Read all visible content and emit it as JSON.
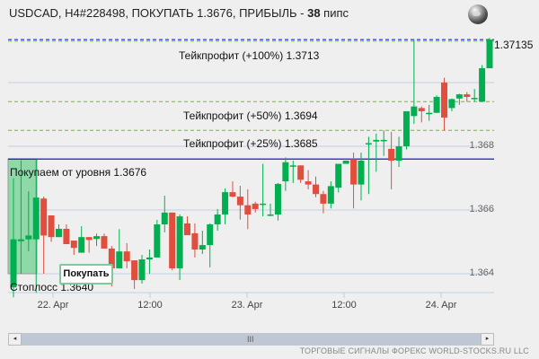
{
  "header": {
    "title_prefix": "USDCAD, H4#228498, ПОКУПАТЬ 1.3676, ПРИБЫЛЬ - ",
    "profit_pips": "38",
    "title_suffix": " пипс",
    "globe_icon": "globe-icon"
  },
  "labels": {
    "tp100": "Тейкпрофит (+100%) 1.3713",
    "tp50": "Тейкпрофит (+50%) 1.3694",
    "tp25": "Тейкпрофит (+25%) 1.3685",
    "entry": "Покупаем от уровня 1.3676",
    "stoploss": "Стоплосс 1.3640",
    "buy_button": "Покупать",
    "current_price": "1.37135"
  },
  "footer": {
    "credit": "ТОРГОВЫЕ СИГНАЛЫ ФОРЕКС WORLD-STOCKS.RU LLC",
    "scroll_left": "◂",
    "scroll_right": "▸",
    "scroll_grip": "III"
  },
  "colors": {
    "up": "#00b050",
    "down": "#e04e3e",
    "entry_line": "#0000c0",
    "tp_line": "#66cc00",
    "current_line": "#0000ff",
    "grid": "#c0cfe0",
    "zone": "#8fd8a8"
  },
  "chart_data": {
    "type": "candlestick",
    "title": "USDCAD, H4#228498, ПОКУПАТЬ 1.3676, ПРИБЫЛЬ - 38 пипс",
    "symbol": "USDCAD",
    "timeframe": "H4",
    "y_ticks": [
      1.364,
      1.366,
      1.368
    ],
    "x_ticks": [
      {
        "label": "22. Apr",
        "x": 59
      },
      {
        "label": "12:00",
        "x": 167
      },
      {
        "label": "23. Apr",
        "x": 275
      },
      {
        "label": "12:00",
        "x": 383
      },
      {
        "label": "24. Apr",
        "x": 491
      }
    ],
    "levels": {
      "take_profit_100": 1.3713,
      "take_profit_50": 1.3694,
      "take_profit_25": 1.3685,
      "entry": 1.3676,
      "stop_loss": 1.364,
      "current": 1.37135
    },
    "candles": [
      {
        "o": 1.36357,
        "h": 1.367,
        "l": 1.36326,
        "c": 1.36508
      },
      {
        "o": 1.36502,
        "h": 1.36756,
        "l": 1.364,
        "c": 1.36508
      },
      {
        "o": 1.36508,
        "h": 1.36659,
        "l": 1.36471,
        "c": 1.3652
      },
      {
        "o": 1.36508,
        "h": 1.3676,
        "l": 1.3634,
        "c": 1.36639
      },
      {
        "o": 1.36636,
        "h": 1.36642,
        "l": 1.364,
        "c": 1.3652
      },
      {
        "o": 1.36583,
        "h": 1.36583,
        "l": 1.365,
        "c": 1.36515
      },
      {
        "o": 1.36515,
        "h": 1.36555,
        "l": 1.36515,
        "c": 1.36541
      },
      {
        "o": 1.36541,
        "h": 1.36555,
        "l": 1.36493,
        "c": 1.36493
      },
      {
        "o": 1.36504,
        "h": 1.36504,
        "l": 1.36459,
        "c": 1.36481
      },
      {
        "o": 1.36466,
        "h": 1.36549,
        "l": 1.36466,
        "c": 1.36515
      },
      {
        "o": 1.36515,
        "h": 1.36515,
        "l": 1.36466,
        "c": 1.36506
      },
      {
        "o": 1.36509,
        "h": 1.36526,
        "l": 1.36487,
        "c": 1.36518
      },
      {
        "o": 1.36518,
        "h": 1.36526,
        "l": 1.36479,
        "c": 1.36479
      },
      {
        "o": 1.36479,
        "h": 1.36487,
        "l": 1.3636,
        "c": 1.36417
      },
      {
        "o": 1.36417,
        "h": 1.3654,
        "l": 1.36417,
        "c": 1.3647
      },
      {
        "o": 1.3647,
        "h": 1.36496,
        "l": 1.36417,
        "c": 1.36439
      },
      {
        "o": 1.36442,
        "h": 1.36442,
        "l": 1.36352,
        "c": 1.3638
      },
      {
        "o": 1.3638,
        "h": 1.36459,
        "l": 1.36369,
        "c": 1.36445
      },
      {
        "o": 1.36445,
        "h": 1.36476,
        "l": 1.364,
        "c": 1.36451
      },
      {
        "o": 1.36451,
        "h": 1.36569,
        "l": 1.36451,
        "c": 1.36555
      },
      {
        "o": 1.36555,
        "h": 1.36645,
        "l": 1.3653,
        "c": 1.36592
      },
      {
        "o": 1.36592,
        "h": 1.36592,
        "l": 1.36411,
        "c": 1.36417
      },
      {
        "o": 1.36417,
        "h": 1.36586,
        "l": 1.3638,
        "c": 1.3658
      },
      {
        "o": 1.36558,
        "h": 1.3658,
        "l": 1.36521,
        "c": 1.36521
      },
      {
        "o": 1.36527,
        "h": 1.36558,
        "l": 1.36451,
        "c": 1.36476
      },
      {
        "o": 1.36476,
        "h": 1.36535,
        "l": 1.36462,
        "c": 1.3649
      },
      {
        "o": 1.3649,
        "h": 1.36558,
        "l": 1.3642,
        "c": 1.36555
      },
      {
        "o": 1.36555,
        "h": 1.36603,
        "l": 1.36535,
        "c": 1.36586
      },
      {
        "o": 1.36586,
        "h": 1.36668,
        "l": 1.36555,
        "c": 1.36656
      },
      {
        "o": 1.36656,
        "h": 1.3669,
        "l": 1.3664,
        "c": 1.36642
      },
      {
        "o": 1.36642,
        "h": 1.36676,
        "l": 1.3657,
        "c": 1.36615
      },
      {
        "o": 1.36615,
        "h": 1.36665,
        "l": 1.3654,
        "c": 1.36586
      },
      {
        "o": 1.3662,
        "h": 1.36626,
        "l": 1.36592,
        "c": 1.36603
      },
      {
        "o": 1.3662,
        "h": 1.36745,
        "l": 1.3658,
        "c": 1.3662
      },
      {
        "o": 1.36586,
        "h": 1.3662,
        "l": 1.3658,
        "c": 1.36586
      },
      {
        "o": 1.36586,
        "h": 1.36685,
        "l": 1.36567,
        "c": 1.36682
      },
      {
        "o": 1.3669,
        "h": 1.36765,
        "l": 1.3666,
        "c": 1.3675
      },
      {
        "o": 1.3674,
        "h": 1.36755,
        "l": 1.36685,
        "c": 1.3674
      },
      {
        "o": 1.3674,
        "h": 1.36705,
        "l": 1.36685,
        "c": 1.36695
      },
      {
        "o": 1.3669,
        "h": 1.36725,
        "l": 1.36665,
        "c": 1.3668
      },
      {
        "o": 1.3668,
        "h": 1.36705,
        "l": 1.3664,
        "c": 1.3665
      },
      {
        "o": 1.3665,
        "h": 1.3666,
        "l": 1.3659,
        "c": 1.3662
      },
      {
        "o": 1.3662,
        "h": 1.3669,
        "l": 1.36605,
        "c": 1.36675
      },
      {
        "o": 1.3667,
        "h": 1.36745,
        "l": 1.36655,
        "c": 1.36745
      },
      {
        "o": 1.36745,
        "h": 1.36755,
        "l": 1.36745,
        "c": 1.36755
      },
      {
        "o": 1.3676,
        "h": 1.3678,
        "l": 1.36605,
        "c": 1.3668
      },
      {
        "o": 1.3668,
        "h": 1.3678,
        "l": 1.3663,
        "c": 1.36755
      },
      {
        "o": 1.3681,
        "h": 1.3683,
        "l": 1.3665,
        "c": 1.3681
      },
      {
        "o": 1.36815,
        "h": 1.3684,
        "l": 1.3672,
        "c": 1.3682
      },
      {
        "o": 1.3682,
        "h": 1.3685,
        "l": 1.3677,
        "c": 1.3682
      },
      {
        "o": 1.36792,
        "h": 1.36845,
        "l": 1.36665,
        "c": 1.36755
      },
      {
        "o": 1.36755,
        "h": 1.3683,
        "l": 1.36735,
        "c": 1.368
      },
      {
        "o": 1.368,
        "h": 1.36895,
        "l": 1.3679,
        "c": 1.3691
      },
      {
        "o": 1.36895,
        "h": 1.37135,
        "l": 1.3687,
        "c": 1.36925
      },
      {
        "o": 1.3692,
        "h": 1.36925,
        "l": 1.36875,
        "c": 1.3691
      },
      {
        "o": 1.36905,
        "h": 1.3693,
        "l": 1.3688,
        "c": 1.36905
      },
      {
        "o": 1.36905,
        "h": 1.3696,
        "l": 1.36905,
        "c": 1.36955
      },
      {
        "o": 1.37,
        "h": 1.37015,
        "l": 1.3685,
        "c": 1.3689
      },
      {
        "o": 1.3692,
        "h": 1.3695,
        "l": 1.3691,
        "c": 1.36948
      },
      {
        "o": 1.3695,
        "h": 1.36965,
        "l": 1.3693,
        "c": 1.36963
      },
      {
        "o": 1.36963,
        "h": 1.3697,
        "l": 1.3694,
        "c": 1.36955
      },
      {
        "o": 1.3695,
        "h": 1.3698,
        "l": 1.3694,
        "c": 1.36952
      },
      {
        "o": 1.3694,
        "h": 1.37055,
        "l": 1.3694,
        "c": 1.37045
      },
      {
        "o": 1.37045,
        "h": 1.3714,
        "l": 1.37045,
        "c": 1.37135
      }
    ]
  }
}
